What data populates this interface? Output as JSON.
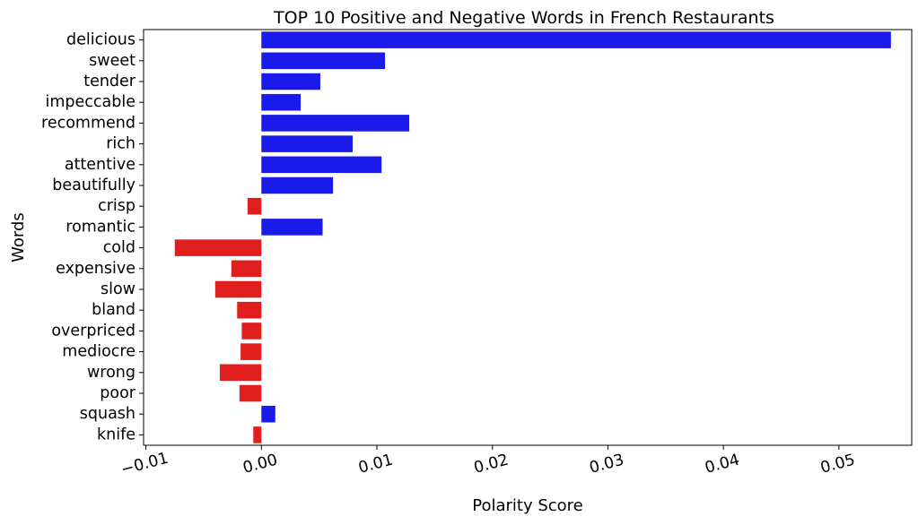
{
  "colors": {
    "positive": "#1a1aeb",
    "negative": "#e01e1e",
    "axis": "#000000"
  },
  "chart_data": {
    "type": "bar",
    "orientation": "horizontal",
    "title": "TOP 10 Positive and Negative Words in French Restaurants",
    "xlabel": "Polarity Score",
    "ylabel": "Words",
    "xlim": [
      -0.0102,
      0.0563
    ],
    "xticks": [
      -0.01,
      0.0,
      0.01,
      0.02,
      0.03,
      0.04,
      0.05
    ],
    "xtick_labels": [
      "−0.01",
      "0.00",
      "0.01",
      "0.02",
      "0.03",
      "0.04",
      "0.05"
    ],
    "grid": false,
    "legend": "none",
    "categories": [
      "delicious",
      "sweet",
      "tender",
      "impeccable",
      "recommend",
      "rich",
      "attentive",
      "beautifully",
      "crisp",
      "romantic",
      "cold",
      "expensive",
      "slow",
      "bland",
      "overpriced",
      "mediocre",
      "wrong",
      "poor",
      "squash",
      "knife"
    ],
    "values": [
      0.0545,
      0.0107,
      0.0051,
      0.0034,
      0.0128,
      0.0079,
      0.0104,
      0.0062,
      -0.0012,
      0.0053,
      -0.0075,
      -0.0026,
      -0.004,
      -0.0021,
      -0.0017,
      -0.0018,
      -0.0036,
      -0.0019,
      0.0012,
      -0.0007
    ]
  }
}
